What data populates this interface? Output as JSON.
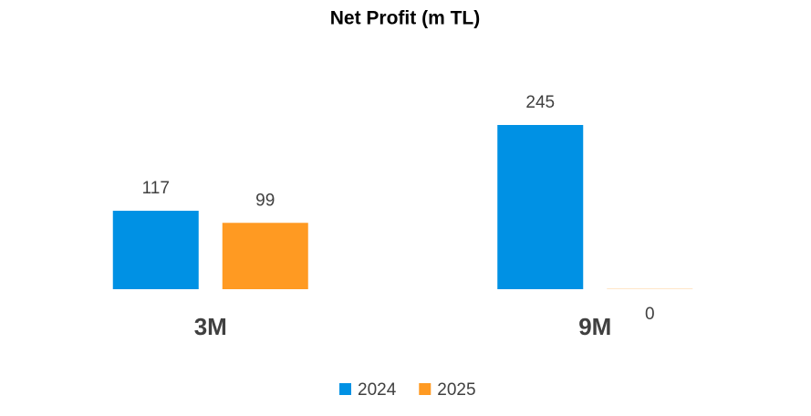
{
  "chart_data": {
    "type": "bar",
    "title": "Net Profit (m TL)",
    "categories": [
      "3M",
      "9M"
    ],
    "series": [
      {
        "name": "2024",
        "color": "#0091e4",
        "values": [
          117,
          245
        ]
      },
      {
        "name": "2025",
        "color": "#ff9a22",
        "values": [
          99,
          0
        ]
      }
    ],
    "legend": "bottom"
  }
}
